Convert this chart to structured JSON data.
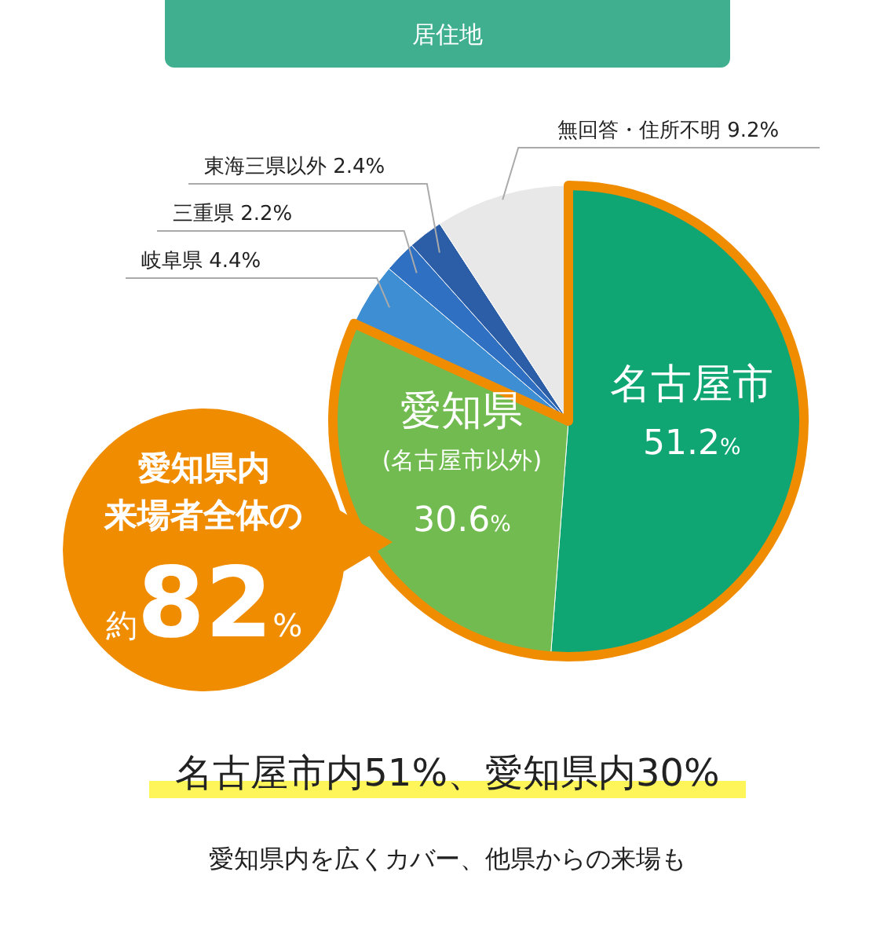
{
  "chart_data": {
    "type": "pie",
    "title": "居住地",
    "categories": [
      "名古屋市",
      "愛知県(名古屋市以外)",
      "岐阜県",
      "三重県",
      "東海三県以外",
      "無回答・住所不明"
    ],
    "values": [
      51.2,
      30.6,
      4.4,
      2.2,
      2.4,
      9.2
    ],
    "colors": [
      "#10a673",
      "#72bb50",
      "#3e8ed3",
      "#2f70c2",
      "#2c5ea8",
      "#e8e8e8"
    ],
    "value_labels": [
      "51.2%",
      "30.6%",
      "4.4%",
      "2.2%",
      "2.4%",
      "9.2%"
    ],
    "annotations": [
      "愛知県内",
      "来場者全体の",
      "約82%",
      "名古屋市内51%、愛知県内30%",
      "愛知県内を広くカバー、他県からの来場も"
    ]
  }
}
